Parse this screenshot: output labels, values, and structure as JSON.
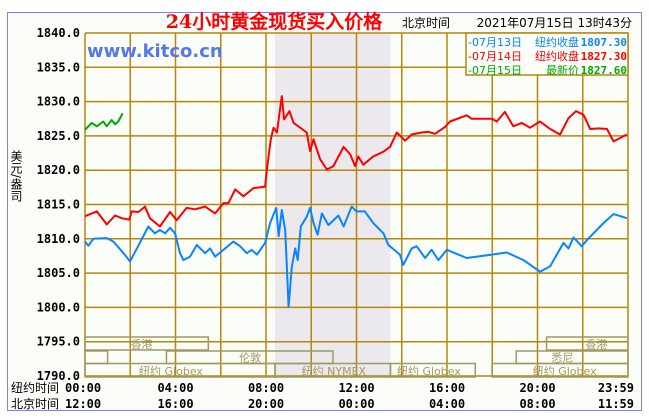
{
  "colors": {
    "grid": "#b8860b",
    "blue": "#0a84ff",
    "red": "#ff0000",
    "green": "#00aa00",
    "shade": "#ebe8ee",
    "session": "#a09a60",
    "frame": "#8080f0",
    "bg": "#fbfdf9"
  },
  "chart_data": {
    "type": "line",
    "title": "24小时黄金现货买入价格",
    "time_label": "北京时间",
    "timestamp": "2021年07月15日 13时43分",
    "watermark": "www.kitco.cn",
    "ylabel": "美元/盎司",
    "ylim": [
      1790,
      1840
    ],
    "xlim": [
      0,
      24
    ],
    "yticks": [
      "1840.0",
      "1835.0",
      "1830.0",
      "1825.0",
      "1820.0",
      "1815.0",
      "1810.0",
      "1805.0",
      "1800.0",
      "1795.0",
      "1790.0"
    ],
    "ytick_values": [
      1840,
      1835,
      1830,
      1825,
      1820,
      1815,
      1810,
      1805,
      1800,
      1795,
      1790
    ],
    "x_rows": [
      {
        "label": "纽约时间",
        "ticks": [
          "00:00",
          "04:00",
          "08:00",
          "12:00",
          "16:00",
          "20:00",
          "23:59"
        ]
      },
      {
        "label": "北京时间",
        "ticks": [
          "12:00",
          "16:00",
          "20:00",
          "00:00",
          "04:00",
          "08:00",
          "11:59"
        ]
      }
    ],
    "x_tick_hours": [
      0,
      4,
      8,
      12,
      16,
      20,
      24
    ],
    "shaded_range_hours": [
      8.4,
      13.5
    ],
    "legend_position": "top-right",
    "legend": [
      {
        "date": "-07月13日",
        "desc": "纽约收盘",
        "value": "1807.30",
        "color": "#0a84ff"
      },
      {
        "date": "-07月14日",
        "desc": "纽约收盘",
        "value": "1827.30",
        "color": "#ff0000"
      },
      {
        "date": "-07月15日",
        "desc": "最新价",
        "value": "1827.60",
        "color": "#00aa00"
      }
    ],
    "sessions": [
      {
        "name": "香港",
        "row": 0,
        "start": 0,
        "end": 5.45,
        "label_at": 2.5
      },
      {
        "name": "香港",
        "row": 0,
        "start": 20.4,
        "end": 24,
        "label_at": 22.6
      },
      {
        "name": "伦敦",
        "row": 1,
        "start": 0,
        "end": 1,
        "label_at": null
      },
      {
        "name": "伦敦",
        "row": 1,
        "start": 3.6,
        "end": 10.96,
        "label_at": 7.3
      },
      {
        "name": "悉尼",
        "row": 1,
        "start": 19.06,
        "end": 24,
        "label_at": 21.1
      },
      {
        "name": "纽约 Globex",
        "row": 2,
        "start": 0,
        "end": 8.4,
        "label_at": 3.8
      },
      {
        "name": "纽约 NYMEX",
        "row": 2,
        "start": 8.4,
        "end": 13.5,
        "label_at": 11
      },
      {
        "name": "纽约 Globex",
        "row": 2,
        "start": 13.5,
        "end": 17.25,
        "label_at": 15.2
      },
      {
        "name": "纽约 Globex",
        "row": 2,
        "start": 17.99,
        "end": 24,
        "label_at": 21.2
      }
    ],
    "series": [
      {
        "name": "07月13日",
        "color": "#0a84ff",
        "points": [
          [
            0,
            1809.6
          ],
          [
            0.15,
            1809.0
          ],
          [
            0.37,
            1810.0
          ],
          [
            0.96,
            1810.1
          ],
          [
            1.25,
            1809.6
          ],
          [
            1.7,
            1807.9
          ],
          [
            1.99,
            1806.7
          ],
          [
            2.36,
            1809.0
          ],
          [
            2.8,
            1811.8
          ],
          [
            3.09,
            1810.8
          ],
          [
            3.31,
            1811.3
          ],
          [
            3.54,
            1810.8
          ],
          [
            3.76,
            1811.6
          ],
          [
            3.98,
            1810.8
          ],
          [
            4.2,
            1807.9
          ],
          [
            4.35,
            1806.9
          ],
          [
            4.64,
            1807.4
          ],
          [
            4.94,
            1809.1
          ],
          [
            5.31,
            1807.9
          ],
          [
            5.53,
            1808.6
          ],
          [
            5.75,
            1807.4
          ],
          [
            6.12,
            1808.4
          ],
          [
            6.56,
            1809.6
          ],
          [
            6.86,
            1808.9
          ],
          [
            7.15,
            1807.9
          ],
          [
            7.37,
            1808.4
          ],
          [
            7.6,
            1807.7
          ],
          [
            7.96,
            1809.4
          ],
          [
            8.18,
            1812.3
          ],
          [
            8.45,
            1814.5
          ],
          [
            8.56,
            1810.4
          ],
          [
            8.7,
            1814.2
          ],
          [
            8.85,
            1811.3
          ],
          [
            9.0,
            1800.1
          ],
          [
            9.14,
            1805.9
          ],
          [
            9.29,
            1808.6
          ],
          [
            9.4,
            1806.9
          ],
          [
            9.54,
            1811.8
          ],
          [
            9.8,
            1813.2
          ],
          [
            9.95,
            1814.5
          ],
          [
            10.1,
            1812.3
          ],
          [
            10.28,
            1810.6
          ],
          [
            10.47,
            1813.7
          ],
          [
            10.76,
            1812.0
          ],
          [
            11.2,
            1813.4
          ],
          [
            11.43,
            1811.8
          ],
          [
            11.79,
            1814.7
          ],
          [
            12.0,
            1814.0
          ],
          [
            12.37,
            1814.0
          ],
          [
            12.74,
            1812.3
          ],
          [
            13.19,
            1810.8
          ],
          [
            13.41,
            1809.1
          ],
          [
            13.92,
            1807.7
          ],
          [
            14.07,
            1806.2
          ],
          [
            14.44,
            1808.6
          ],
          [
            14.66,
            1808.9
          ],
          [
            15.03,
            1807.2
          ],
          [
            15.32,
            1808.4
          ],
          [
            15.62,
            1806.9
          ],
          [
            15.99,
            1808.4
          ],
          [
            16.87,
            1807.2
          ],
          [
            17.98,
            1807.7
          ],
          [
            18.64,
            1808.0
          ],
          [
            19.38,
            1806.9
          ],
          [
            20.11,
            1805.2
          ],
          [
            20.56,
            1806.0
          ],
          [
            21.15,
            1809.4
          ],
          [
            21.37,
            1808.6
          ],
          [
            21.59,
            1810.2
          ],
          [
            21.96,
            1808.9
          ],
          [
            22.18,
            1809.8
          ],
          [
            22.92,
            1812.3
          ],
          [
            23.36,
            1813.6
          ],
          [
            23.95,
            1813.0
          ]
        ]
      },
      {
        "name": "07月14日",
        "color": "#ff0000",
        "points": [
          [
            0,
            1813.3
          ],
          [
            0.52,
            1814.0
          ],
          [
            0.96,
            1812.1
          ],
          [
            1.33,
            1813.4
          ],
          [
            1.62,
            1813.0
          ],
          [
            1.96,
            1812.8
          ],
          [
            2.06,
            1814.0
          ],
          [
            2.36,
            1813.9
          ],
          [
            2.65,
            1814.7
          ],
          [
            2.87,
            1813.0
          ],
          [
            3.31,
            1811.8
          ],
          [
            3.76,
            1813.9
          ],
          [
            4.05,
            1812.7
          ],
          [
            4.49,
            1814.5
          ],
          [
            4.86,
            1814.3
          ],
          [
            5.31,
            1814.7
          ],
          [
            5.75,
            1813.7
          ],
          [
            6.12,
            1815.2
          ],
          [
            6.34,
            1815.2
          ],
          [
            6.64,
            1817.2
          ],
          [
            7.0,
            1816.2
          ],
          [
            7.45,
            1817.4
          ],
          [
            7.96,
            1817.6
          ],
          [
            8.04,
            1820.1
          ],
          [
            8.21,
            1824.5
          ],
          [
            8.33,
            1826.2
          ],
          [
            8.48,
            1825.5
          ],
          [
            8.7,
            1830.8
          ],
          [
            8.8,
            1827.4
          ],
          [
            9.04,
            1828.6
          ],
          [
            9.22,
            1826.9
          ],
          [
            9.51,
            1826.2
          ],
          [
            9.8,
            1825.5
          ],
          [
            9.95,
            1822.8
          ],
          [
            10.1,
            1824.5
          ],
          [
            10.39,
            1821.6
          ],
          [
            10.69,
            1820.1
          ],
          [
            10.98,
            1820.6
          ],
          [
            11.43,
            1823.4
          ],
          [
            11.72,
            1822.3
          ],
          [
            11.94,
            1820.6
          ],
          [
            12.08,
            1822.0
          ],
          [
            12.3,
            1820.8
          ],
          [
            12.74,
            1822.0
          ],
          [
            13.19,
            1822.7
          ],
          [
            13.48,
            1823.4
          ],
          [
            13.78,
            1825.5
          ],
          [
            14.15,
            1824.3
          ],
          [
            14.44,
            1825.2
          ],
          [
            14.88,
            1825.5
          ],
          [
            15.18,
            1825.6
          ],
          [
            15.47,
            1825.3
          ],
          [
            15.91,
            1826.3
          ],
          [
            16.13,
            1827.1
          ],
          [
            16.87,
            1828.0
          ],
          [
            17.09,
            1827.5
          ],
          [
            17.98,
            1827.5
          ],
          [
            18.2,
            1827.1
          ],
          [
            18.56,
            1828.5
          ],
          [
            18.93,
            1826.4
          ],
          [
            19.3,
            1826.9
          ],
          [
            19.67,
            1826.2
          ],
          [
            20.11,
            1827.1
          ],
          [
            20.56,
            1826.0
          ],
          [
            21.0,
            1825.2
          ],
          [
            21.37,
            1827.6
          ],
          [
            21.7,
            1828.6
          ],
          [
            22.03,
            1828.1
          ],
          [
            22.33,
            1826.0
          ],
          [
            22.7,
            1826.1
          ],
          [
            23.07,
            1826.0
          ],
          [
            23.36,
            1824.2
          ],
          [
            23.95,
            1825.2
          ]
        ]
      },
      {
        "name": "07月15日",
        "color": "#00aa00",
        "points": [
          [
            0,
            1825.9
          ],
          [
            0.3,
            1826.9
          ],
          [
            0.52,
            1826.4
          ],
          [
            0.81,
            1827.1
          ],
          [
            0.96,
            1826.4
          ],
          [
            1.18,
            1827.3
          ],
          [
            1.33,
            1826.7
          ],
          [
            1.47,
            1827.1
          ],
          [
            1.66,
            1828.3
          ]
        ]
      }
    ]
  }
}
